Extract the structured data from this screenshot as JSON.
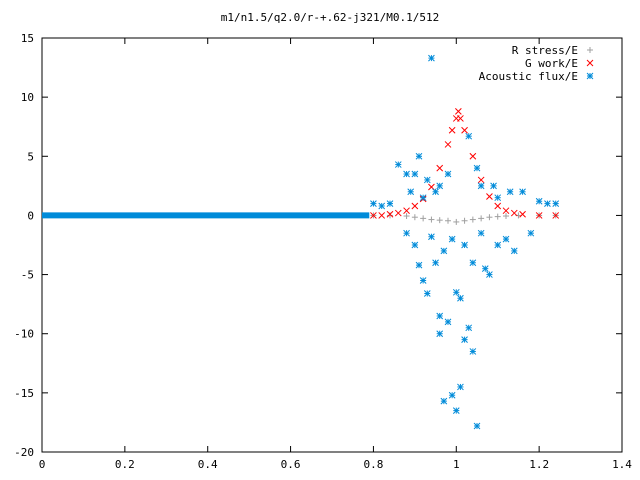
{
  "chart_data": {
    "type": "scatter",
    "title": "m1/n1.5/q2.0/r-+.62-j321/M0.1/512",
    "xlabel": "",
    "ylabel": "",
    "xlim": [
      0,
      1.4
    ],
    "ylim": [
      -20,
      15
    ],
    "x_ticks": [
      "0",
      "0.2",
      "0.4",
      "0.6",
      "0.8",
      "1",
      "1.2",
      "1.4"
    ],
    "y_ticks": [
      "15",
      "10",
      "5",
      "0",
      "-5",
      "-10",
      "-15",
      "-20"
    ],
    "x_tick_values": [
      0,
      0.2,
      0.4,
      0.6,
      0.8,
      1.0,
      1.2,
      1.4
    ],
    "y_tick_values": [
      15,
      10,
      5,
      0,
      -5,
      -10,
      -15,
      -20
    ],
    "grid": false,
    "legend_position": "top-right",
    "series": [
      {
        "name": "R stress/E",
        "marker": "plus",
        "color": "#a0a0a0",
        "points": [
          [
            0.8,
            0.0
          ],
          [
            0.84,
            0.0
          ],
          [
            0.88,
            -0.05
          ],
          [
            0.9,
            -0.15
          ],
          [
            0.92,
            -0.25
          ],
          [
            0.94,
            -0.35
          ],
          [
            0.96,
            -0.4
          ],
          [
            0.98,
            -0.45
          ],
          [
            1.0,
            -0.55
          ],
          [
            1.02,
            -0.45
          ],
          [
            1.04,
            -0.35
          ],
          [
            1.06,
            -0.25
          ],
          [
            1.08,
            -0.15
          ],
          [
            1.1,
            -0.1
          ],
          [
            1.12,
            -0.05
          ],
          [
            1.15,
            0.0
          ],
          [
            1.2,
            0.0
          ],
          [
            1.24,
            0.0
          ]
        ]
      },
      {
        "name": "G work/E",
        "marker": "x",
        "color": "#ff0000",
        "points": [
          [
            0.8,
            0.0
          ],
          [
            0.82,
            0.0
          ],
          [
            0.84,
            0.1
          ],
          [
            0.86,
            0.2
          ],
          [
            0.88,
            0.4
          ],
          [
            0.9,
            0.8
          ],
          [
            0.92,
            1.4
          ],
          [
            0.94,
            2.4
          ],
          [
            0.96,
            4.0
          ],
          [
            0.98,
            6.0
          ],
          [
            0.99,
            7.2
          ],
          [
            1.0,
            8.2
          ],
          [
            1.005,
            8.8
          ],
          [
            1.01,
            8.2
          ],
          [
            1.02,
            7.2
          ],
          [
            1.04,
            5.0
          ],
          [
            1.06,
            3.0
          ],
          [
            1.08,
            1.6
          ],
          [
            1.1,
            0.8
          ],
          [
            1.12,
            0.4
          ],
          [
            1.14,
            0.2
          ],
          [
            1.16,
            0.1
          ],
          [
            1.2,
            0.0
          ],
          [
            1.24,
            0.0
          ]
        ]
      },
      {
        "name": "Acoustic flux/E",
        "marker": "star",
        "color": "#008bd9",
        "points": [
          [
            0.8,
            1.0
          ],
          [
            0.82,
            0.8
          ],
          [
            0.84,
            1.0
          ],
          [
            0.86,
            4.3
          ],
          [
            0.88,
            3.5
          ],
          [
            0.88,
            -1.5
          ],
          [
            0.89,
            2.0
          ],
          [
            0.9,
            3.5
          ],
          [
            0.9,
            -2.5
          ],
          [
            0.91,
            5.0
          ],
          [
            0.91,
            -4.2
          ],
          [
            0.92,
            1.5
          ],
          [
            0.92,
            -5.5
          ],
          [
            0.93,
            3.0
          ],
          [
            0.93,
            -6.6
          ],
          [
            0.94,
            13.3
          ],
          [
            0.94,
            -1.8
          ],
          [
            0.95,
            2.0
          ],
          [
            0.95,
            -4.0
          ],
          [
            0.96,
            -8.5
          ],
          [
            0.96,
            -10.0
          ],
          [
            0.96,
            2.5
          ],
          [
            0.97,
            -15.7
          ],
          [
            0.97,
            -3.0
          ],
          [
            0.98,
            -9.0
          ],
          [
            0.98,
            3.5
          ],
          [
            0.99,
            -15.2
          ],
          [
            0.99,
            -2.0
          ],
          [
            1.0,
            -16.5
          ],
          [
            1.0,
            -6.5
          ],
          [
            1.01,
            -14.5
          ],
          [
            1.01,
            -7.0
          ],
          [
            1.02,
            -10.5
          ],
          [
            1.02,
            -2.5
          ],
          [
            1.03,
            -9.5
          ],
          [
            1.03,
            6.7
          ],
          [
            1.04,
            -11.5
          ],
          [
            1.04,
            -4.0
          ],
          [
            1.05,
            -17.8
          ],
          [
            1.05,
            4.0
          ],
          [
            1.06,
            -1.5
          ],
          [
            1.06,
            2.5
          ],
          [
            1.07,
            -4.5
          ],
          [
            1.08,
            -5.0
          ],
          [
            1.09,
            2.5
          ],
          [
            1.1,
            -2.5
          ],
          [
            1.1,
            1.5
          ],
          [
            1.12,
            -2.0
          ],
          [
            1.13,
            2.0
          ],
          [
            1.14,
            -3.0
          ],
          [
            1.16,
            2.0
          ],
          [
            1.18,
            -1.5
          ],
          [
            1.2,
            1.2
          ],
          [
            1.22,
            1.0
          ],
          [
            1.24,
            1.0
          ]
        ]
      }
    ]
  }
}
